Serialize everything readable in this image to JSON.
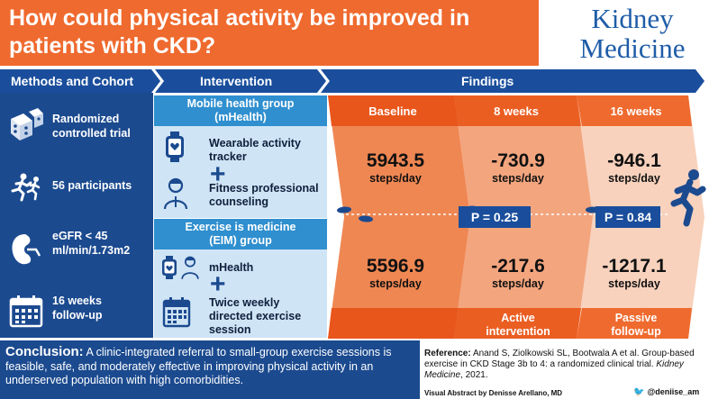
{
  "title": "How could physical activity be improved in patients with CKD?",
  "journal": {
    "line1": "Kidney",
    "line2": "Medicine"
  },
  "headers": {
    "methods": "Methods and Cohort",
    "intervention": "Intervention",
    "findings": "Findings"
  },
  "methods": [
    {
      "icon": "dice-icon",
      "text1": "Randomized",
      "text2": "controlled trial"
    },
    {
      "icon": "runners-icon",
      "text1": "56 participants",
      "text2": ""
    },
    {
      "icon": "kidney-icon",
      "text1": "eGFR < 45",
      "text2": "ml/min/1.73m2"
    },
    {
      "icon": "calendar-icon",
      "text1": "16 weeks",
      "text2": "follow-up"
    }
  ],
  "mhealth": {
    "title1": "Mobile health group",
    "title2": "(mHealth)",
    "item1a": "Wearable activity",
    "item1b": "tracker",
    "item2a": "Fitness professional",
    "item2b": "counseling"
  },
  "eim": {
    "title1": "Exercise is medicine",
    "title2": "(EIM) group",
    "item1": "mHealth",
    "item2a": "Twice weekly",
    "item2b": "directed exercise",
    "item2c": "session"
  },
  "findings": {
    "cols": [
      "Baseline",
      "8 weeks",
      "16 weeks"
    ],
    "unit": "steps/day",
    "mhealth": [
      "5943.5",
      "-730.9",
      "-946.1"
    ],
    "eim": [
      "5596.9",
      "-217.6",
      "-1217.1"
    ],
    "p8": "P = 0.25",
    "p16": "P = 0.84",
    "foot8a": "Active",
    "foot8b": "intervention",
    "foot16a": "Passive",
    "foot16b": "follow-up"
  },
  "conclusion": {
    "label": "Conclusion:",
    "text": "A clinic-integrated referral to small-group exercise sessions is feasible, safe, and moderately effective in improving physical activity in an underserved population with high comorbidities."
  },
  "reference": {
    "label": "Reference:",
    "text": "Anand S, Ziolkowski SL, Bootwala A et al. Group-based exercise in CKD Stage 3b to 4: a randomized clinical trial.",
    "journal": "Kidney Medicine",
    "year": ", 2021."
  },
  "credit": "Visual Abstract by Denisse Arellano, MD",
  "twitter": "@deniise_am",
  "colors": {
    "orange": "#ef6a2e",
    "navy": "#1b4a8f",
    "light_blue": "#cfe4f5",
    "salmon": "#f3a57e",
    "pale": "#f8d2bd"
  }
}
